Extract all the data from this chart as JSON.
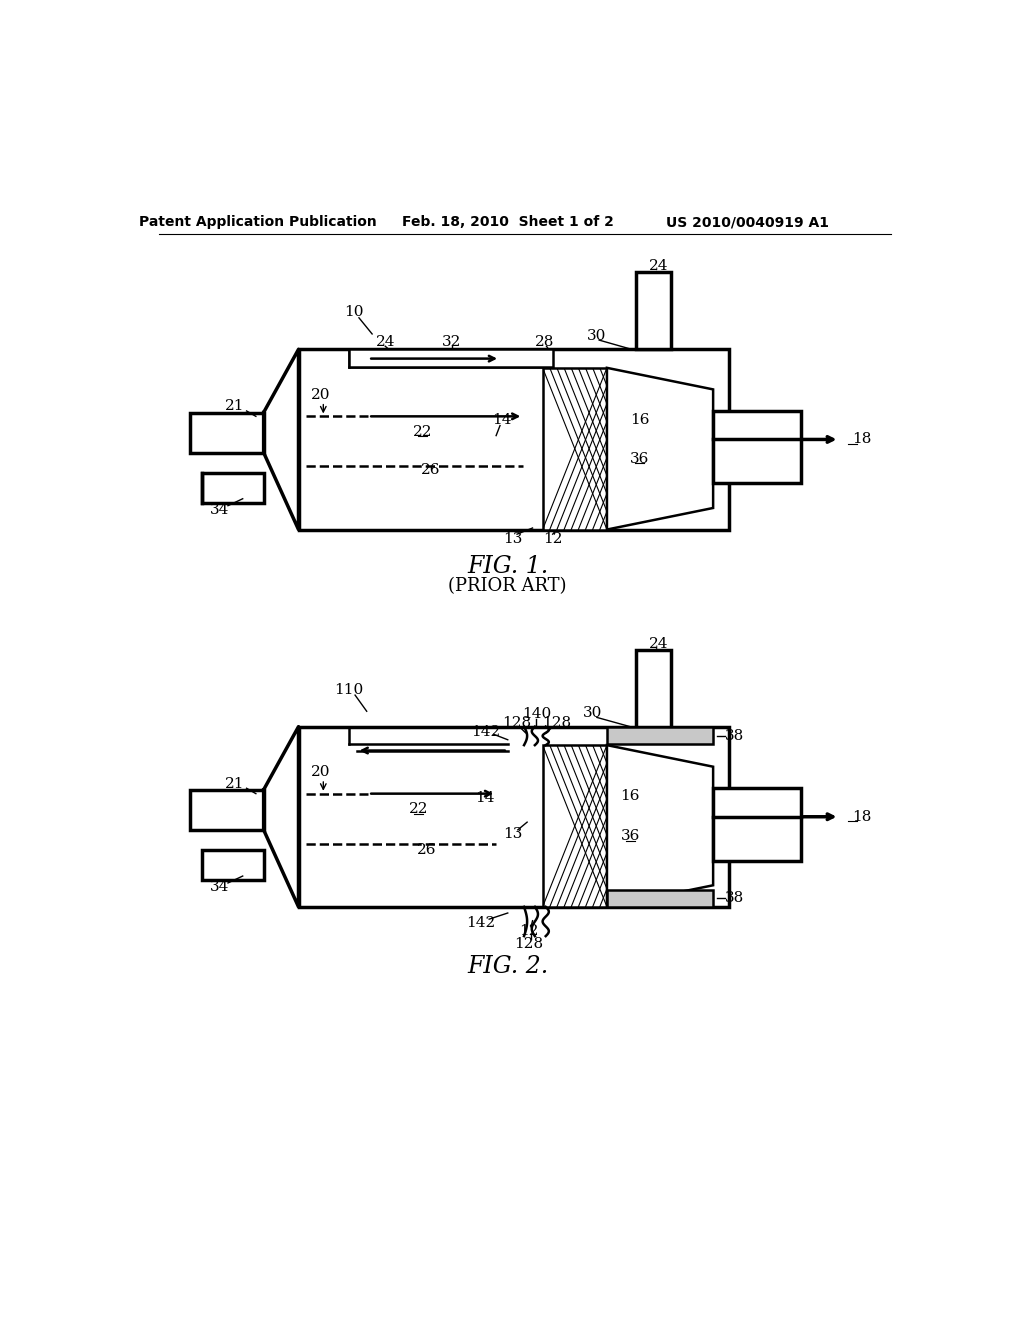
{
  "bg": "#ffffff",
  "header_left": "Patent Application Publication",
  "header_mid": "Feb. 18, 2010  Sheet 1 of 2",
  "header_right": "US 2010/0040919 A1",
  "lw_main": 1.8,
  "lw_thick": 2.5,
  "lw_thin": 1.0,
  "fs_label": 11,
  "fs_title": 17,
  "fs_subtitle": 13,
  "fs_header": 10,
  "fig1_title": "FIG. 1.",
  "fig1_sub": "(PRIOR ART)",
  "fig2_title": "FIG. 2."
}
